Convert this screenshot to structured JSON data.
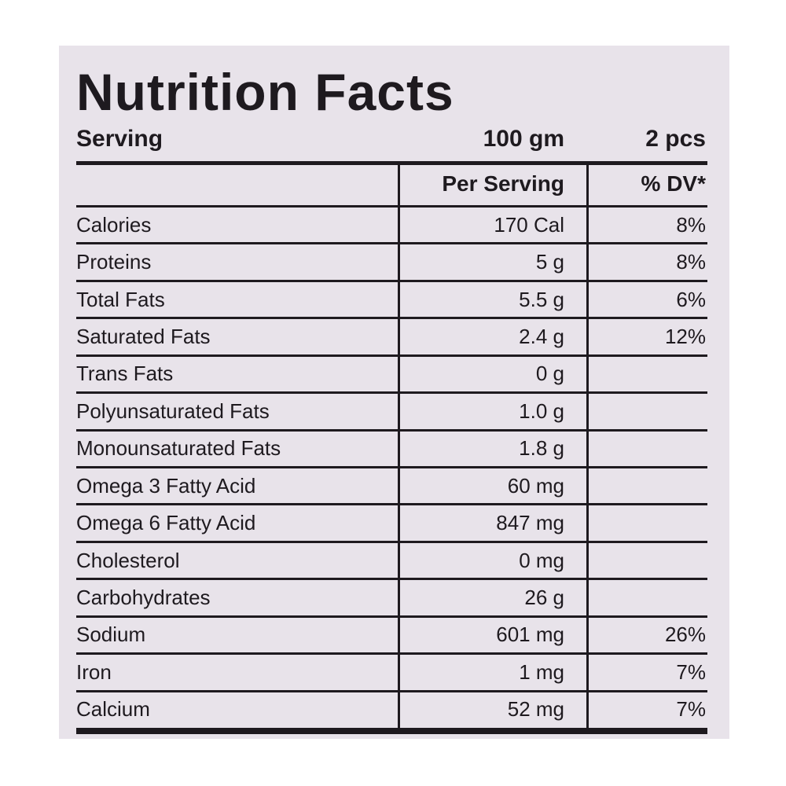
{
  "header": {
    "title": "Nutrition Facts"
  },
  "serving": {
    "label": "Serving",
    "amount": "100 gm",
    "pieces": "2 pcs"
  },
  "table": {
    "columns": [
      "Per Serving",
      "% DV*"
    ],
    "rows": [
      [
        "Calories",
        "170 Cal",
        "8%"
      ],
      [
        "Proteins",
        "5 g",
        "8%"
      ],
      [
        "Total Fats",
        "5.5 g",
        "6%"
      ],
      [
        "Saturated Fats",
        "2.4 g",
        "12%"
      ],
      [
        "Trans Fats",
        "0 g"
      ],
      [
        "Polyunsaturated Fats",
        "1.0 g"
      ],
      [
        "Monounsaturated Fats",
        "1.8 g"
      ],
      [
        "Omega 3 Fatty Acid",
        "60 mg"
      ],
      [
        "Omega 6 Fatty Acid",
        "847 mg"
      ],
      [
        "Cholesterol",
        "0 mg"
      ],
      [
        "Carbohydrates",
        "26 g"
      ],
      [
        "Sodium",
        "601 mg",
        "26%"
      ],
      [
        "Iron",
        "1 mg",
        "7%"
      ],
      [
        "Calcium",
        "52 mg",
        "7%"
      ]
    ]
  }
}
